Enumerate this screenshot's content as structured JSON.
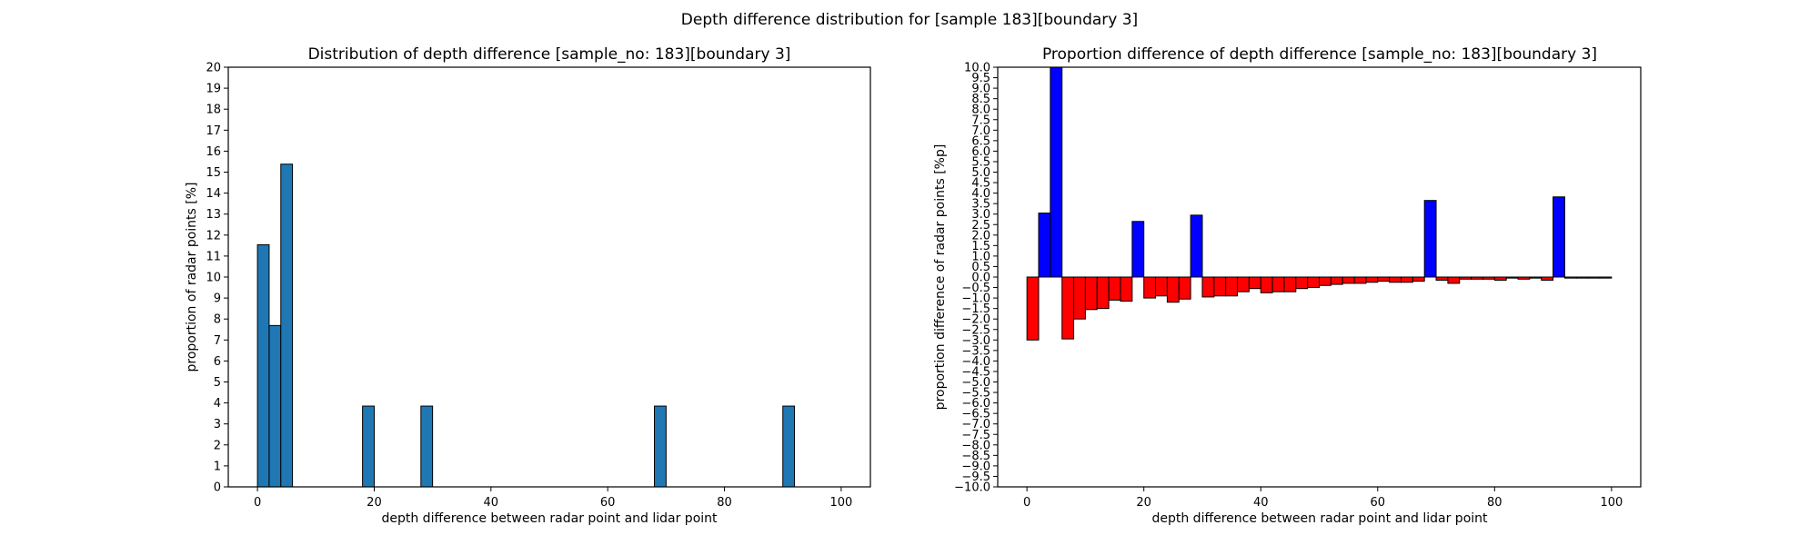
{
  "suptitle": "Depth difference distribution for [sample 183][boundary 3]",
  "chart_data": [
    {
      "type": "bar",
      "title": "Distribution of depth difference [sample_no: 183][boundary 3]",
      "xlabel": "depth difference between radar point and lidar point",
      "ylabel": "proportion of radar points [%]",
      "xlim": [
        -5,
        105
      ],
      "ylim": [
        0,
        20
      ],
      "bin_width": 2,
      "x_ticks": [
        0,
        20,
        40,
        60,
        80,
        100
      ],
      "y_ticks": [
        0,
        1,
        2,
        3,
        4,
        5,
        6,
        7,
        8,
        9,
        10,
        11,
        12,
        13,
        14,
        15,
        16,
        17,
        18,
        19,
        20
      ],
      "bar_color": "#1f77b4",
      "edge_color": "#000000",
      "x": [
        1,
        3,
        5,
        19,
        29,
        69,
        91
      ],
      "values": [
        11.54,
        7.69,
        15.38,
        3.85,
        3.85,
        3.85,
        3.85
      ]
    },
    {
      "type": "bar",
      "title": "Proportion difference of depth difference [sample_no: 183][boundary 3]",
      "xlabel": "depth difference between radar point and lidar point",
      "ylabel": "proportion difference of radar points [%p]",
      "xlim": [
        -5,
        105
      ],
      "ylim": [
        -10,
        10
      ],
      "bin_width": 2,
      "x_ticks": [
        0,
        20,
        40,
        60,
        80,
        100
      ],
      "y_tick_step": 0.5,
      "positive_color": "#0000ff",
      "negative_color": "#ff0000",
      "edge_color": "#000000",
      "x": [
        1,
        3,
        5,
        7,
        9,
        11,
        13,
        15,
        17,
        19,
        21,
        23,
        25,
        27,
        29,
        31,
        33,
        35,
        37,
        39,
        41,
        43,
        45,
        47,
        49,
        51,
        53,
        55,
        57,
        59,
        61,
        63,
        65,
        67,
        69,
        71,
        73,
        75,
        77,
        79,
        81,
        83,
        85,
        87,
        89,
        91,
        93,
        95,
        97,
        99
      ],
      "values": [
        -3.0,
        3.05,
        10.0,
        -2.95,
        -2.0,
        -1.55,
        -1.5,
        -1.1,
        -1.15,
        2.65,
        -1.0,
        -0.9,
        -1.2,
        -1.05,
        2.95,
        -0.95,
        -0.9,
        -0.9,
        -0.7,
        -0.55,
        -0.75,
        -0.7,
        -0.7,
        -0.55,
        -0.5,
        -0.4,
        -0.35,
        -0.3,
        -0.3,
        -0.25,
        -0.2,
        -0.25,
        -0.25,
        -0.2,
        3.65,
        -0.15,
        -0.3,
        -0.1,
        -0.1,
        -0.1,
        -0.15,
        -0.05,
        -0.1,
        -0.05,
        -0.15,
        3.82,
        -0.05,
        -0.05,
        -0.05,
        -0.05
      ]
    }
  ]
}
